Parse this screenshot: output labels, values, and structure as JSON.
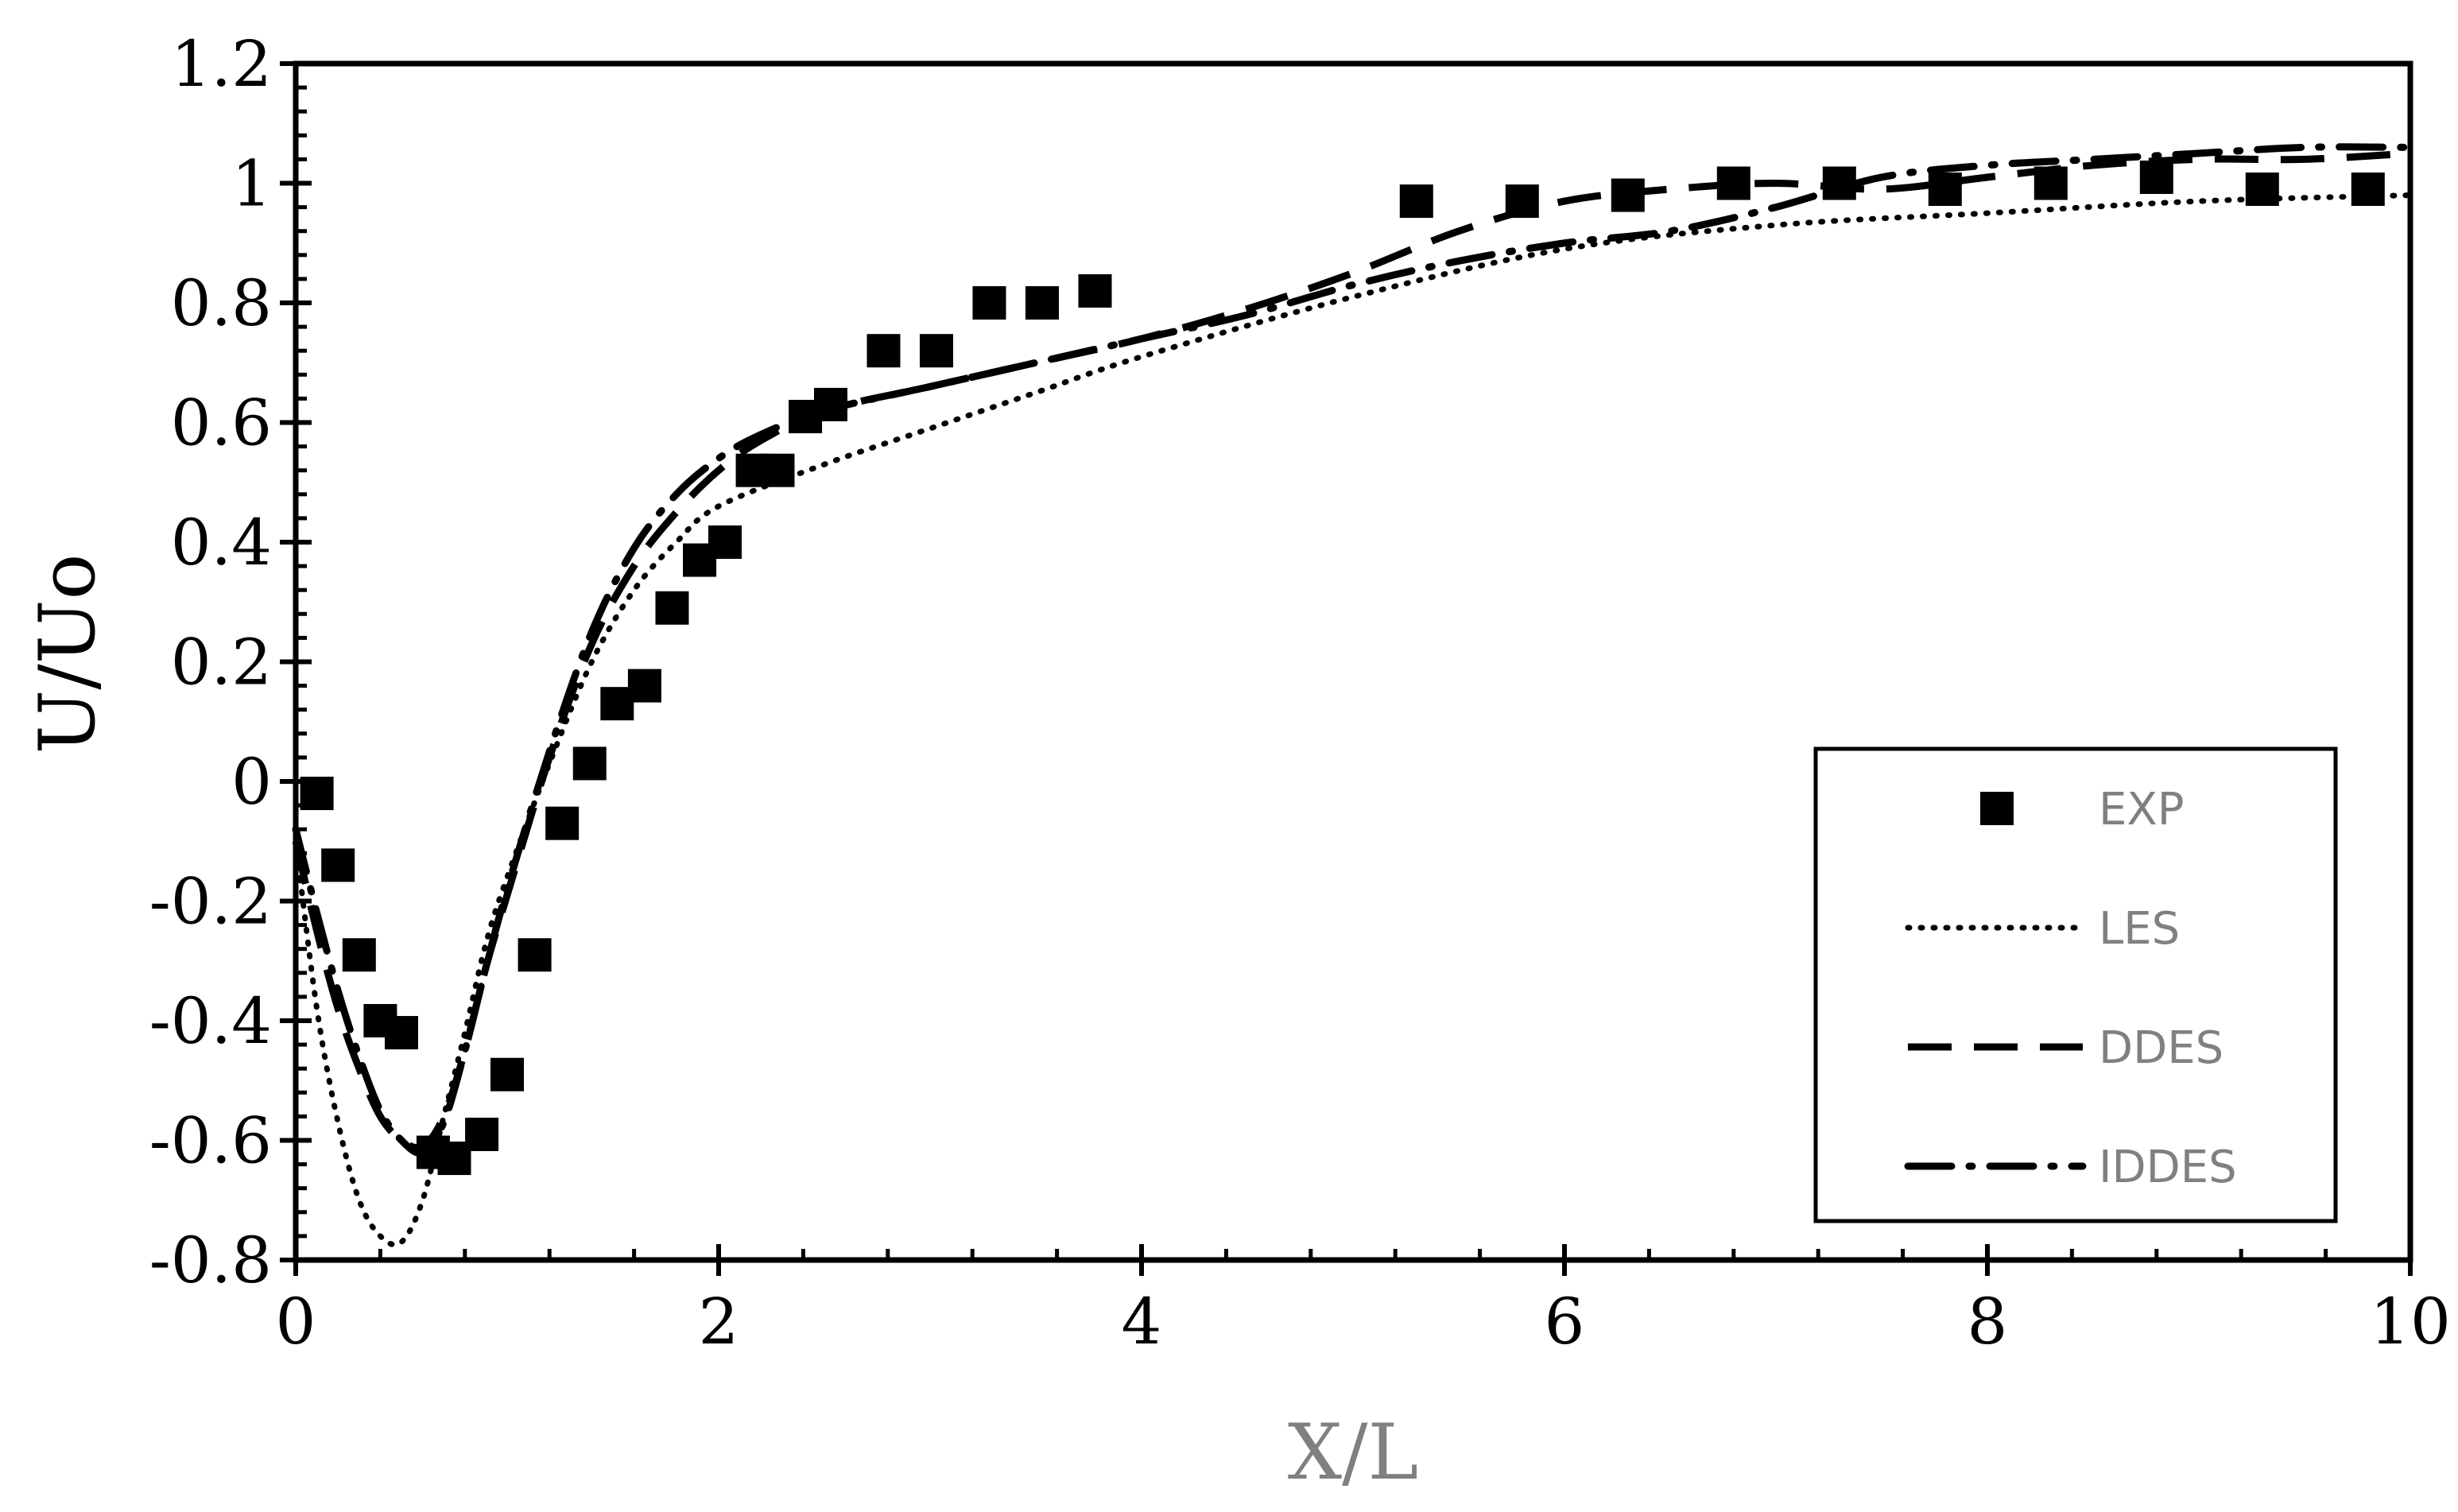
{
  "chart_data": {
    "type": "scatter",
    "xlabel": "X/L",
    "ylabel": "U/Uo",
    "xlim": [
      0,
      10
    ],
    "ylim": [
      -0.8,
      1.2
    ],
    "x_ticks": [
      "0",
      "2",
      "4",
      "6",
      "8",
      "10"
    ],
    "y_ticks": [
      "-0.8",
      "-0.6",
      "-0.4",
      "-0.2",
      "0",
      "0.2",
      "0.4",
      "0.6",
      "0.8",
      "1",
      "1.2"
    ],
    "x_tick_values": [
      0,
      2,
      4,
      6,
      8,
      10
    ],
    "y_tick_values": [
      -0.8,
      -0.6,
      -0.4,
      -0.2,
      0,
      0.2,
      0.4,
      0.6,
      0.8,
      1,
      1.2
    ],
    "legend_position": "bottom-right",
    "grid": false,
    "series": [
      {
        "name": "EXP",
        "style": "marker-square",
        "x": [
          0.1,
          0.2,
          0.3,
          0.4,
          0.5,
          0.65,
          0.75,
          0.88,
          1.0,
          1.13,
          1.26,
          1.39,
          1.52,
          1.65,
          1.78,
          1.91,
          2.03,
          2.16,
          2.28,
          2.41,
          2.53,
          2.78,
          3.03,
          3.28,
          3.53,
          3.78,
          5.3,
          5.8,
          6.3,
          6.8,
          7.3,
          7.8,
          8.3,
          8.8,
          9.3,
          9.8
        ],
        "y": [
          -0.02,
          -0.14,
          -0.29,
          -0.4,
          -0.42,
          -0.62,
          -0.63,
          -0.59,
          -0.49,
          -0.29,
          -0.07,
          0.03,
          0.13,
          0.16,
          0.29,
          0.37,
          0.4,
          0.52,
          0.52,
          0.61,
          0.63,
          0.72,
          0.72,
          0.8,
          0.8,
          0.82,
          0.97,
          0.97,
          0.98,
          1.0,
          1.0,
          0.99,
          1.0,
          1.01,
          0.99,
          0.99
        ]
      },
      {
        "name": "LES",
        "style": "dotted",
        "x": [
          0,
          0.1,
          0.2,
          0.3,
          0.4,
          0.5,
          0.6,
          0.7,
          0.8,
          0.9,
          1.0,
          1.2,
          1.4,
          1.6,
          1.8,
          2.0,
          2.5,
          3.0,
          3.5,
          4.0,
          5.0,
          6.0,
          7.0,
          8.0,
          9.0,
          10.0
        ],
        "y": [
          -0.1,
          -0.38,
          -0.57,
          -0.7,
          -0.76,
          -0.77,
          -0.7,
          -0.56,
          -0.42,
          -0.27,
          -0.16,
          0.03,
          0.2,
          0.32,
          0.4,
          0.46,
          0.53,
          0.59,
          0.65,
          0.71,
          0.81,
          0.89,
          0.93,
          0.95,
          0.97,
          0.98
        ]
      },
      {
        "name": "DDES",
        "style": "dashed",
        "x": [
          0,
          0.1,
          0.2,
          0.3,
          0.4,
          0.5,
          0.6,
          0.7,
          0.8,
          0.9,
          1.0,
          1.2,
          1.4,
          1.6,
          1.8,
          2.0,
          2.2,
          2.5,
          3.0,
          3.5,
          4.0,
          4.5,
          5.0,
          5.5,
          6.0,
          6.5,
          7.0,
          7.5,
          8.0,
          8.5,
          9.0,
          9.5,
          10.0
        ],
        "y": [
          -0.1,
          -0.25,
          -0.38,
          -0.48,
          -0.56,
          -0.6,
          -0.61,
          -0.56,
          -0.45,
          -0.31,
          -0.19,
          0.04,
          0.23,
          0.36,
          0.45,
          0.52,
          0.57,
          0.62,
          0.66,
          0.7,
          0.74,
          0.79,
          0.85,
          0.92,
          0.97,
          0.99,
          1.0,
          0.99,
          1.01,
          1.03,
          1.04,
          1.04,
          1.05
        ]
      },
      {
        "name": "IDDES",
        "style": "dash-dot",
        "x": [
          0,
          0.1,
          0.2,
          0.3,
          0.4,
          0.5,
          0.6,
          0.7,
          0.8,
          0.9,
          1.0,
          1.2,
          1.4,
          1.6,
          1.8,
          2.0,
          2.2,
          2.5,
          3.0,
          3.5,
          4.0,
          4.5,
          5.0,
          5.5,
          6.0,
          6.5,
          7.0,
          7.5,
          8.0,
          8.5,
          9.0,
          9.5,
          10.0
        ],
        "y": [
          -0.08,
          -0.22,
          -0.35,
          -0.46,
          -0.55,
          -0.6,
          -0.62,
          -0.57,
          -0.45,
          -0.31,
          -0.18,
          0.05,
          0.25,
          0.39,
          0.48,
          0.54,
          0.58,
          0.62,
          0.66,
          0.7,
          0.74,
          0.78,
          0.83,
          0.87,
          0.9,
          0.92,
          0.96,
          1.01,
          1.03,
          1.04,
          1.05,
          1.06,
          1.06
        ]
      }
    ]
  }
}
